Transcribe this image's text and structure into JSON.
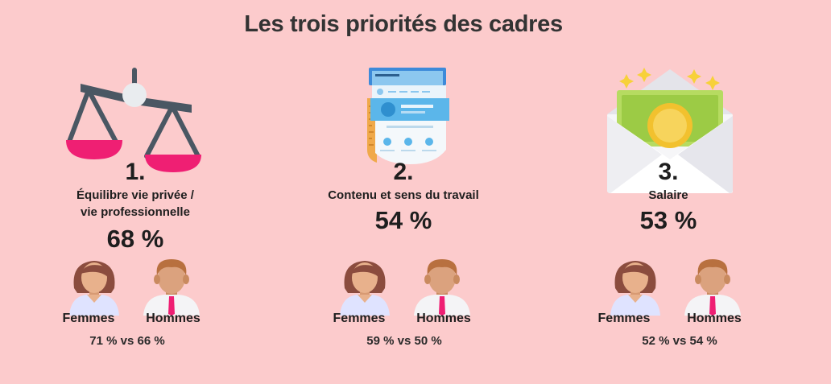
{
  "title": "Les trois priorités des cadres",
  "priorities": [
    {
      "rank": "1.",
      "label_line1": "Équilibre vie privée /",
      "label_line2": "vie professionnelle",
      "percent": "68 %",
      "icon": "balance-scale-icon",
      "women_label": "Femmes",
      "men_label": "Hommes",
      "comparison": "71 % vs 66 %"
    },
    {
      "rank": "2.",
      "label_line1": "Contenu et sens du travail",
      "percent": "54 %",
      "icon": "documents-icon",
      "women_label": "Femmes",
      "men_label": "Hommes",
      "comparison": "59 % vs 50 %"
    },
    {
      "rank": "3.",
      "label_line1": "Salaire",
      "percent": "53 %",
      "icon": "money-envelope-icon",
      "women_label": "Femmes",
      "men_label": "Hommes",
      "comparison": "52 % vs 54 %"
    }
  ],
  "colors": {
    "background": "#fccbcc",
    "accent_pink": "#ef1f73",
    "text": "#1e1e1e"
  }
}
